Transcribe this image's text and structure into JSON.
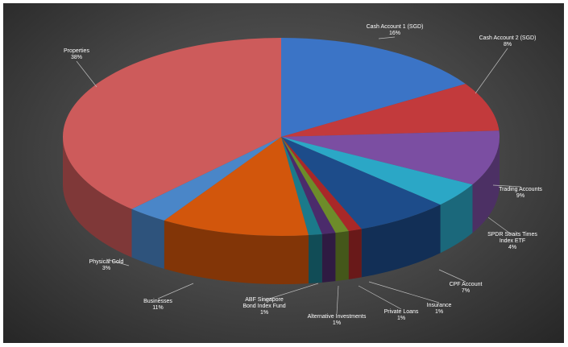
{
  "chart_data": {
    "type": "pie3d",
    "categories": [
      "Cash Account 1 (SGD)",
      "Cash Account 2 (SGD)",
      "Trading Accounts",
      "SPDR Straits Times Index ETF",
      "CPF Account",
      "Insurance",
      "Private Loans",
      "Alternative Investments",
      "ABF Singapore Bond Index Fund",
      "Businesses",
      "Physical Gold",
      "Properties"
    ],
    "values": [
      16,
      8,
      9,
      4,
      7,
      1,
      1,
      1,
      1,
      11,
      3,
      38
    ],
    "value_labels": [
      "16%",
      "8%",
      "9%",
      "4%",
      "7%",
      "1%",
      "1%",
      "1%",
      "1%",
      "11%",
      "3%",
      "38%"
    ],
    "colors": [
      "#3b74c6",
      "#c23a3c",
      "#7b4ea2",
      "#2ba7c6",
      "#1d4c8a",
      "#a92828",
      "#6d8c2a",
      "#4b2b6b",
      "#1b7a8a",
      "#d2560c",
      "#4a86c8",
      "#cd5b5b"
    ]
  }
}
